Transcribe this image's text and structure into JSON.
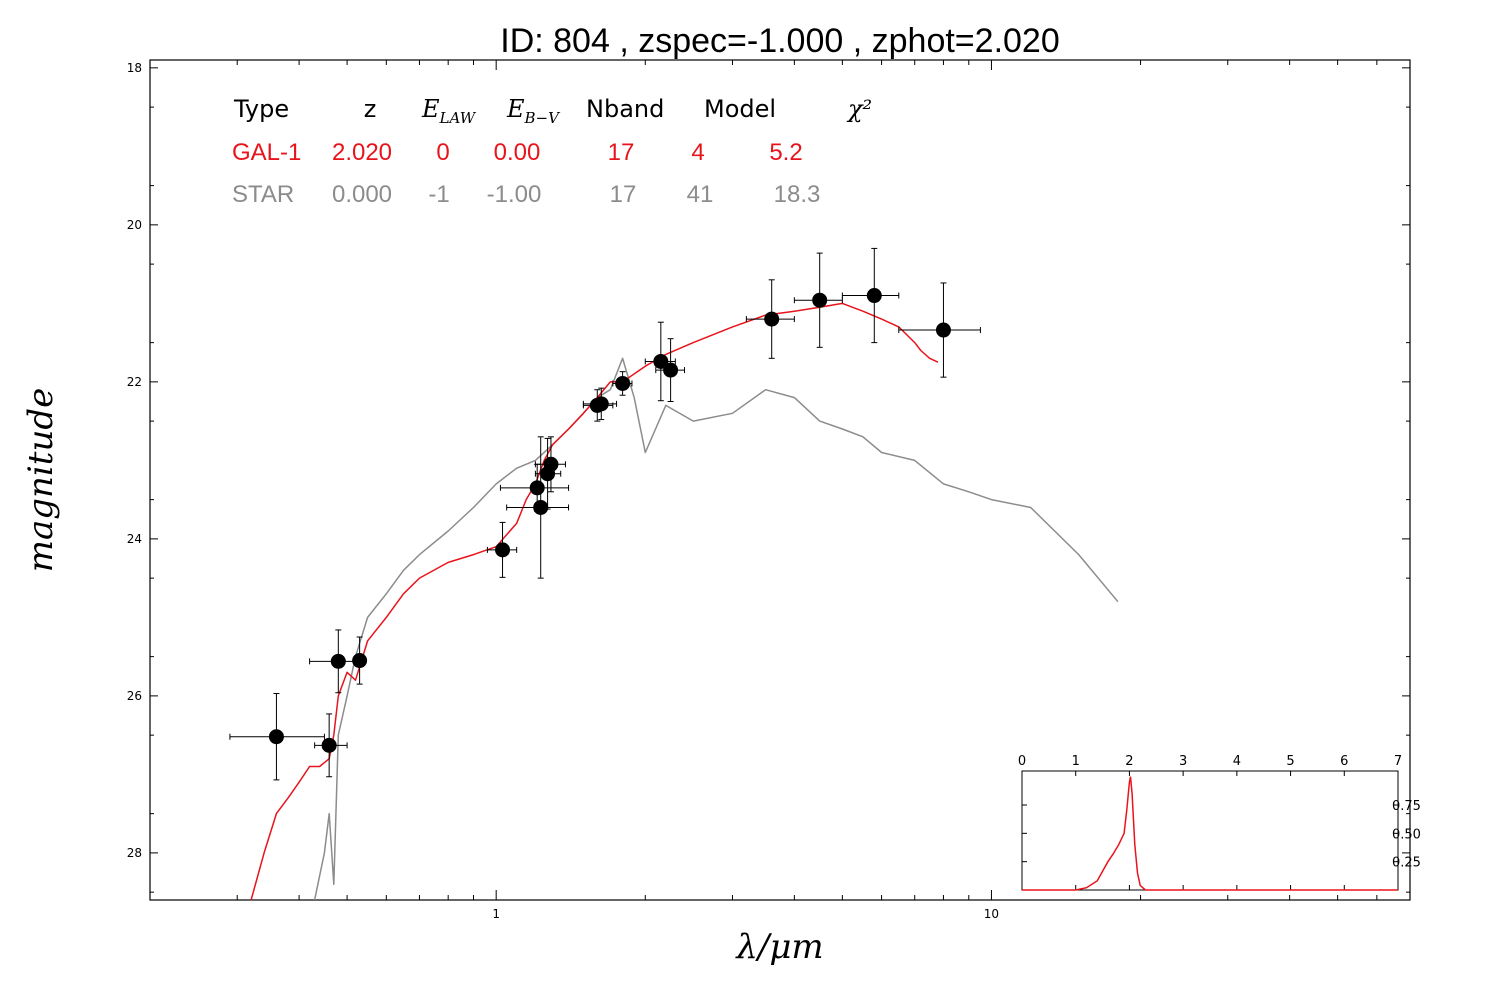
{
  "title": "ID:  804   , zspec=-1.000 , zphot=2.020",
  "colors": {
    "galaxy": "#e8141c",
    "star": "#8c8c8c",
    "points": "#000000"
  },
  "chart_data": {
    "type": "scatter",
    "xlabel": "λ/μm",
    "ylabel": "magnitude",
    "xscale": "log",
    "xlim": [
      0.2,
      70
    ],
    "ylim": [
      28.6,
      17.9
    ],
    "x_ticks": [
      {
        "value": 1,
        "label": "1"
      },
      {
        "value": 10,
        "label": "10"
      }
    ],
    "y_ticks": [
      {
        "value": 18,
        "label": "18"
      },
      {
        "value": 20,
        "label": "20"
      },
      {
        "value": 22,
        "label": "22"
      },
      {
        "value": 24,
        "label": "24"
      },
      {
        "value": 26,
        "label": "26"
      },
      {
        "value": 28,
        "label": "28"
      }
    ],
    "legend_table": {
      "headers": [
        "Type",
        "z",
        "E_LAW",
        "E_B−V",
        "Nband",
        "Model",
        "χ²"
      ],
      "rows": [
        {
          "type": "GAL-1",
          "z": "2.020",
          "elaw": "0",
          "ebv": "0.00",
          "nband": "17",
          "model": "4",
          "chi2": "5.2"
        },
        {
          "type": "STAR",
          "z": "0.000",
          "elaw": "-1",
          "ebv": "-1.00",
          "nband": "17",
          "model": "41",
          "chi2": "18.3"
        }
      ]
    },
    "photometry": [
      {
        "x": 0.36,
        "y": 26.52,
        "xerr": [
          0.29,
          0.45
        ],
        "yerr": 0.55
      },
      {
        "x": 0.46,
        "y": 26.63,
        "xerr": [
          0.43,
          0.5
        ],
        "yerr": 0.4
      },
      {
        "x": 0.48,
        "y": 25.56,
        "xerr": [
          0.42,
          0.54
        ],
        "yerr": 0.4
      },
      {
        "x": 0.53,
        "y": 25.55,
        "xerr": [
          0.52,
          0.54
        ],
        "yerr": 0.3
      },
      {
        "x": 1.03,
        "y": 24.14,
        "xerr": [
          0.96,
          1.1
        ],
        "yerr": 0.35
      },
      {
        "x": 1.21,
        "y": 23.35,
        "xerr": [
          1.02,
          1.4
        ],
        "yerr": 0.3
      },
      {
        "x": 1.23,
        "y": 23.6,
        "xerr": [
          1.05,
          1.4
        ],
        "yerr": 0.9
      },
      {
        "x": 1.27,
        "y": 23.17,
        "xerr": [
          1.2,
          1.35
        ],
        "yerr": 0.45
      },
      {
        "x": 1.29,
        "y": 23.05,
        "xerr": [
          1.2,
          1.38
        ],
        "yerr": 0.35
      },
      {
        "x": 1.6,
        "y": 22.3,
        "xerr": [
          1.5,
          1.72
        ],
        "yerr": 0.2
      },
      {
        "x": 1.63,
        "y": 22.28,
        "xerr": [
          1.5,
          1.75
        ],
        "yerr": 0.2
      },
      {
        "x": 1.8,
        "y": 22.02,
        "xerr": [
          1.72,
          1.88
        ],
        "yerr": 0.15
      },
      {
        "x": 2.15,
        "y": 21.74,
        "xerr": [
          2.0,
          2.3
        ],
        "yerr": 0.5
      },
      {
        "x": 2.25,
        "y": 21.85,
        "xerr": [
          2.1,
          2.4
        ],
        "yerr": 0.4
      },
      {
        "x": 3.6,
        "y": 21.2,
        "xerr": [
          3.2,
          4.0
        ],
        "yerr": 0.5
      },
      {
        "x": 4.5,
        "y": 20.96,
        "xerr": [
          4.0,
          5.0
        ],
        "yerr": 0.6
      },
      {
        "x": 5.8,
        "y": 20.9,
        "xerr": [
          5.0,
          6.5
        ],
        "yerr": 0.6
      },
      {
        "x": 8.0,
        "y": 21.34,
        "xerr": [
          6.5,
          9.5
        ],
        "yerr": 0.6
      }
    ],
    "galaxy_sed": {
      "x": [
        0.32,
        0.34,
        0.36,
        0.38,
        0.4,
        0.42,
        0.44,
        0.46,
        0.47,
        0.48,
        0.5,
        0.52,
        0.55,
        0.6,
        0.65,
        0.7,
        0.8,
        0.9,
        1.0,
        1.1,
        1.15,
        1.2,
        1.25,
        1.3,
        1.4,
        1.5,
        1.6,
        1.7,
        1.8,
        2.0,
        2.2,
        2.5,
        3.0,
        3.5,
        4.0,
        4.5,
        5.0,
        5.5,
        6.0,
        6.5,
        7.0,
        7.2,
        7.5,
        7.8
      ],
      "y": [
        28.6,
        28.0,
        27.5,
        27.3,
        27.1,
        26.9,
        26.9,
        26.8,
        26.5,
        26.0,
        25.7,
        25.8,
        25.3,
        25.0,
        24.7,
        24.5,
        24.3,
        24.2,
        24.1,
        23.8,
        23.5,
        23.3,
        23.0,
        22.8,
        22.6,
        22.4,
        22.2,
        22.0,
        22.0,
        21.8,
        21.65,
        21.5,
        21.3,
        21.15,
        21.1,
        21.05,
        21.0,
        21.1,
        21.2,
        21.3,
        21.5,
        21.6,
        21.7,
        21.75
      ]
    },
    "star_sed": {
      "x": [
        0.43,
        0.45,
        0.46,
        0.47,
        0.48,
        0.5,
        0.52,
        0.55,
        0.6,
        0.65,
        0.7,
        0.8,
        0.9,
        1.0,
        1.1,
        1.2,
        1.3,
        1.4,
        1.5,
        1.6,
        1.7,
        1.8,
        1.9,
        2.0,
        2.2,
        2.5,
        3.0,
        3.5,
        4.0,
        4.5,
        5.0,
        5.5,
        6.0,
        7.0,
        8.0,
        9.0,
        10.0,
        12.0,
        15.0,
        18.0
      ],
      "y": [
        28.6,
        28.0,
        27.5,
        28.4,
        26.5,
        26.0,
        25.5,
        25.0,
        24.7,
        24.4,
        24.2,
        23.9,
        23.6,
        23.3,
        23.1,
        23.0,
        22.8,
        22.6,
        22.4,
        22.2,
        22.1,
        21.7,
        22.2,
        22.9,
        22.3,
        22.5,
        22.4,
        22.1,
        22.2,
        22.5,
        22.6,
        22.7,
        22.9,
        23.0,
        23.3,
        23.4,
        23.5,
        23.6,
        24.2,
        24.8
      ]
    }
  },
  "inset": {
    "type": "line",
    "xlim": [
      0,
      7
    ],
    "ylim": [
      0,
      1.05
    ],
    "x_ticks": [
      "0",
      "1",
      "2",
      "3",
      "4",
      "5",
      "6",
      "7"
    ],
    "y_ticks": [
      {
        "value": 0.25,
        "label": "0.25"
      },
      {
        "value": 0.5,
        "label": "0.50"
      },
      {
        "value": 0.75,
        "label": "0.75"
      }
    ],
    "pdz": {
      "x": [
        0,
        1.0,
        1.2,
        1.4,
        1.6,
        1.7,
        1.8,
        1.9,
        1.95,
        2.0,
        2.02,
        2.05,
        2.1,
        2.15,
        2.2,
        2.3,
        2.5,
        7.0
      ],
      "y": [
        0,
        0,
        0.02,
        0.08,
        0.25,
        0.32,
        0.4,
        0.5,
        0.7,
        0.95,
        1.0,
        0.85,
        0.4,
        0.15,
        0.04,
        0.0,
        0.0,
        0.0
      ]
    }
  }
}
